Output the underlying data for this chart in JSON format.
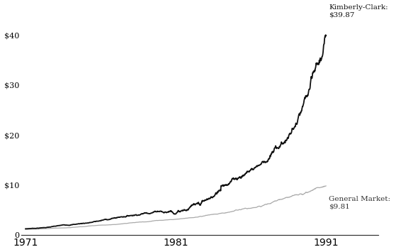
{
  "kc_label": "Kimberly-Clark:\n$39.87",
  "gm_label": "General Market:\n$9.81",
  "kc_final": 39.87,
  "gm_final": 9.81,
  "start_year": 1971,
  "end_year": 1991,
  "yticks": [
    0,
    10,
    20,
    30,
    40
  ],
  "ytick_labels": [
    "0",
    "$10",
    "$20",
    "$30",
    "$40"
  ],
  "xticks": [
    1971,
    1981,
    1991
  ],
  "kc_color": "#111111",
  "gm_color": "#aaaaaa",
  "background_color": "#ffffff",
  "kc_linewidth": 1.3,
  "gm_linewidth": 0.9,
  "ylim_top": 44,
  "ylim_bottom": -0.3
}
